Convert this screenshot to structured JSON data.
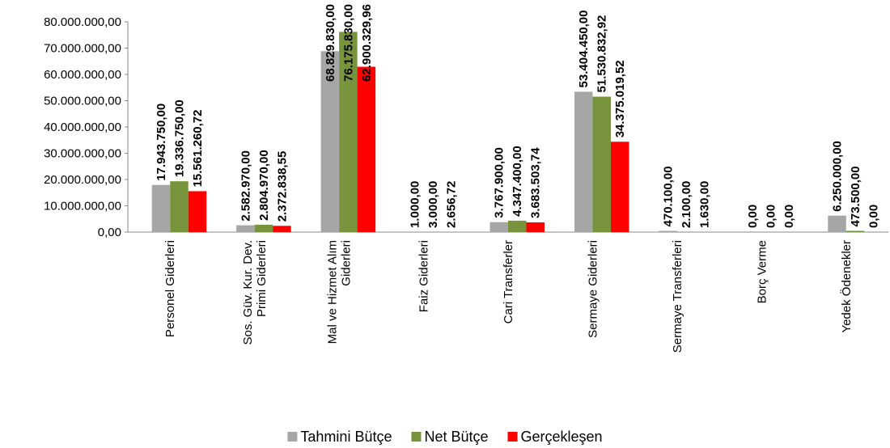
{
  "chart_data": {
    "type": "bar",
    "categories": [
      "Personel Giderleri",
      "Sos. Güv. Kur. Dev.\nPrimi Giderleri",
      "Mal ve Hizmet Alım\nGiderleri",
      "Faiz Giderleri",
      "Cari Transferler",
      "Sermaye Giderleri",
      "Sermaye Transferleri",
      "Borç Verme",
      "Yedek Ödenekler"
    ],
    "series": [
      {
        "name": "Tahmini Bütçe",
        "color": "#a6a6a6",
        "label_color": "#000000",
        "values": [
          17943750,
          2582970,
          68829830,
          1000,
          3767900,
          53404450,
          470100,
          0,
          6250000
        ],
        "value_labels": [
          "17.943.750,00",
          "2.582.970,00",
          "68.829.830,00",
          "1.000,00",
          "3.767.900,00",
          "53.404.450,00",
          "470.100,00",
          "0,00",
          "6.250.000,00"
        ]
      },
      {
        "name": "Net Bütçe",
        "color": "#77933c",
        "label_color": "#000000",
        "values": [
          19336750,
          2804970,
          76175830,
          3000,
          4347400,
          51530832.92,
          2100,
          0,
          473500
        ],
        "value_labels": [
          "19.336.750,00",
          "2.804.970,00",
          "76.175.830,00",
          "3.000,00",
          "4.347.400,00",
          "51.530.832,92",
          "2.100,00",
          "0,00",
          "473.500,00"
        ]
      },
      {
        "name": "Gerçekleşen",
        "color": "#ff0000",
        "label_color": "#ff0000",
        "values": [
          15561260.72,
          2372838.55,
          62900329.96,
          2656.72,
          3683503.74,
          34375019.52,
          1630,
          0,
          0
        ],
        "value_labels": [
          "15.561.260,72",
          "2.372.838,55",
          "62.900.329,96",
          "2.656,72",
          "3.683.503,74",
          "34.375.019,52",
          "1.630,00",
          "0,00",
          "0,00"
        ]
      }
    ],
    "ylim": [
      0,
      80000000
    ],
    "yticks": [
      {
        "value": 0,
        "label": "0,00"
      },
      {
        "value": 10000000,
        "label": "10.000.000,00"
      },
      {
        "value": 20000000,
        "label": "20.000.000,00"
      },
      {
        "value": 30000000,
        "label": "30.000.000,00"
      },
      {
        "value": 40000000,
        "label": "40.000.000,00"
      },
      {
        "value": 50000000,
        "label": "50.000.000,00"
      },
      {
        "value": 60000000,
        "label": "60.000.000,00"
      },
      {
        "value": 70000000,
        "label": "70.000.000,00"
      },
      {
        "value": 80000000,
        "label": "80.000.000,00"
      }
    ],
    "legend": "bottom"
  }
}
